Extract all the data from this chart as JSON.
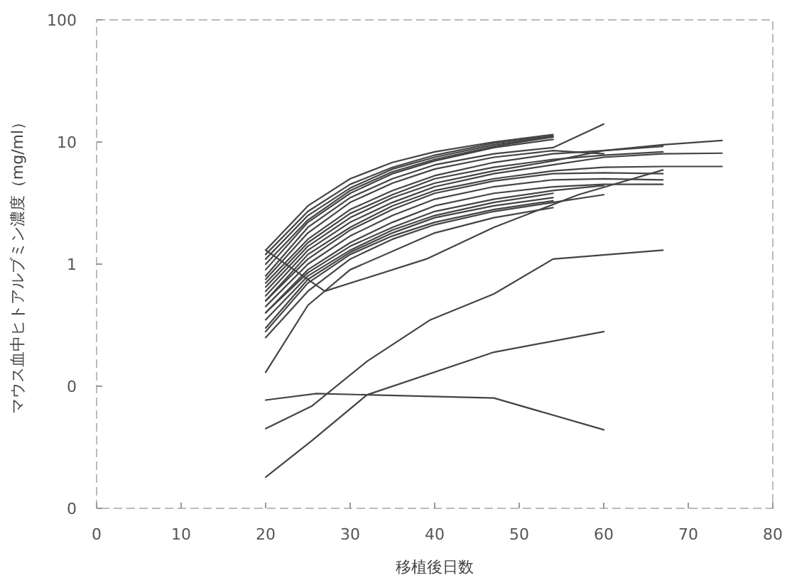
{
  "chart_data": {
    "type": "line",
    "xlabel": "移植後日数",
    "ylabel": "マウス血中ヒトアルブミン濃度（mg/ml）",
    "xlim": [
      0,
      80
    ],
    "ylim": [
      0.01,
      100
    ],
    "log": "y",
    "xticks": [
      0,
      10,
      20,
      30,
      40,
      50,
      60,
      70,
      80
    ],
    "yticks": [
      {
        "value": 0.01,
        "label": "0"
      },
      {
        "value": 0.1,
        "label": "0"
      },
      1,
      10,
      100
    ],
    "series": [
      {
        "color": "#444444",
        "x": [
          20,
          25,
          30,
          35,
          40,
          47,
          54
        ],
        "values": [
          1.3,
          3.0,
          5.0,
          6.8,
          8.3,
          10,
          11.5
        ]
      },
      {
        "color": "#444444",
        "x": [
          20,
          25,
          30,
          35,
          40,
          47,
          54
        ],
        "values": [
          1.1,
          2.5,
          4.2,
          6.0,
          7.5,
          9.5,
          11
        ]
      },
      {
        "color": "#444444",
        "x": [
          20,
          25,
          30,
          35,
          40,
          47,
          54
        ],
        "values": [
          0.9,
          2.2,
          3.8,
          5.5,
          7.0,
          9.0,
          10.5
        ]
      },
      {
        "color": "#444444",
        "x": [
          20,
          25,
          30,
          35,
          40,
          47,
          54,
          60
        ],
        "values": [
          0.8,
          2.0,
          3.5,
          5.0,
          6.5,
          8.0,
          9.0,
          14
        ]
      },
      {
        "color": "#444444",
        "x": [
          20,
          25,
          30,
          35,
          40,
          47,
          54,
          60
        ],
        "values": [
          0.75,
          1.8,
          3.2,
          4.6,
          6.0,
          7.5,
          8.5,
          8.0
        ]
      },
      {
        "color": "#444444",
        "x": [
          20,
          25,
          30,
          35,
          40,
          47,
          54,
          60,
          67
        ],
        "values": [
          0.7,
          1.6,
          2.8,
          4.0,
          5.3,
          6.8,
          8.0,
          8.5,
          9.2
        ]
      },
      {
        "color": "#444444",
        "x": [
          20,
          25,
          30,
          35,
          40,
          47,
          54,
          60,
          67
        ],
        "values": [
          0.65,
          1.5,
          2.6,
          3.7,
          5.0,
          6.2,
          7.2,
          7.8,
          8.3
        ]
      },
      {
        "color": "#444444",
        "x": [
          20,
          25,
          30,
          35,
          40,
          47,
          54,
          60,
          67,
          74
        ],
        "values": [
          0.6,
          1.4,
          2.4,
          3.5,
          4.6,
          5.8,
          7.0,
          8.5,
          9.5,
          10.3
        ]
      },
      {
        "color": "#444444",
        "x": [
          20,
          25,
          30,
          35,
          40,
          47,
          54,
          60,
          67,
          74
        ],
        "values": [
          0.55,
          1.3,
          2.2,
          3.2,
          4.3,
          5.5,
          6.5,
          7.5,
          8.0,
          8.1
        ]
      },
      {
        "color": "#444444",
        "x": [
          20,
          25,
          30,
          35,
          40,
          47,
          54,
          60,
          67,
          74
        ],
        "values": [
          0.5,
          1.2,
          2.0,
          3.0,
          4.0,
          5.0,
          5.8,
          6.2,
          6.3,
          6.3
        ]
      },
      {
        "color": "#444444",
        "x": [
          20,
          25,
          30,
          35,
          40,
          47,
          54,
          60,
          67
        ],
        "values": [
          0.5,
          1.1,
          1.9,
          2.8,
          3.8,
          4.8,
          5.5,
          5.6,
          5.5
        ]
      },
      {
        "color": "#444444",
        "x": [
          20,
          25,
          30,
          35,
          40,
          47,
          54,
          60,
          67
        ],
        "values": [
          0.45,
          1.0,
          1.7,
          2.5,
          3.4,
          4.3,
          4.9,
          5.0,
          4.9
        ]
      },
      {
        "color": "#444444",
        "x": [
          20,
          25,
          30,
          35,
          40,
          47,
          54,
          60,
          67
        ],
        "values": [
          0.4,
          0.9,
          1.5,
          2.2,
          3.0,
          3.8,
          4.3,
          4.5,
          4.5
        ]
      },
      {
        "color": "#444444",
        "x": [
          20,
          25,
          30,
          35,
          40,
          47,
          54,
          60
        ],
        "values": [
          0.4,
          0.85,
          1.4,
          2.0,
          2.7,
          3.4,
          4.0,
          4.4
        ]
      },
      {
        "color": "#444444",
        "x": [
          20,
          25,
          30,
          35,
          40,
          47,
          54
        ],
        "values": [
          0.35,
          0.8,
          1.3,
          1.9,
          2.5,
          3.2,
          3.8
        ]
      },
      {
        "color": "#444444",
        "x": [
          20,
          25,
          30,
          35,
          40,
          47,
          54
        ],
        "values": [
          0.3,
          0.75,
          1.25,
          1.8,
          2.4,
          3.0,
          3.5
        ]
      },
      {
        "color": "#444444",
        "x": [
          20,
          25,
          30,
          35,
          40,
          47,
          54
        ],
        "values": [
          0.28,
          0.7,
          1.2,
          1.7,
          2.2,
          2.8,
          3.3
        ]
      },
      {
        "color": "#444444",
        "x": [
          20,
          25,
          30,
          35,
          40,
          47,
          54,
          60
        ],
        "values": [
          0.25,
          0.6,
          1.1,
          1.6,
          2.1,
          2.7,
          3.2,
          3.7
        ]
      },
      {
        "color": "#444444",
        "x": [
          20,
          25,
          30,
          40,
          47,
          54
        ],
        "values": [
          0.13,
          0.46,
          0.9,
          1.8,
          2.4,
          2.9
        ]
      },
      {
        "color": "#444444",
        "x": [
          20,
          25,
          30,
          35,
          40,
          47,
          54
        ],
        "values": [
          1.2,
          2.7,
          4.5,
          6.2,
          7.8,
          9.8,
          11.2
        ]
      },
      {
        "color": "#444444",
        "x": [
          20,
          25,
          30,
          35,
          40,
          47,
          54
        ],
        "values": [
          1.0,
          2.3,
          4.0,
          5.7,
          7.2,
          9.2,
          11.0
        ]
      },
      {
        "color": "#444444",
        "x": [
          20,
          27,
          39,
          47,
          57,
          67
        ],
        "values": [
          1.3,
          0.6,
          1.1,
          2.0,
          3.7,
          5.9
        ]
      },
      {
        "color": "#444444",
        "x": [
          20,
          25.5,
          32,
          39.5,
          47,
          54,
          67
        ],
        "values": [
          0.045,
          0.069,
          0.16,
          0.35,
          0.57,
          1.1,
          1.3
        ]
      },
      {
        "color": "#444444",
        "x": [
          20,
          25.5,
          32,
          47,
          60
        ],
        "values": [
          0.018,
          0.036,
          0.085,
          0.19,
          0.28
        ]
      },
      {
        "color": "#444444",
        "x": [
          20,
          26,
          47,
          60
        ],
        "values": [
          0.077,
          0.087,
          0.08,
          0.044
        ]
      }
    ]
  }
}
